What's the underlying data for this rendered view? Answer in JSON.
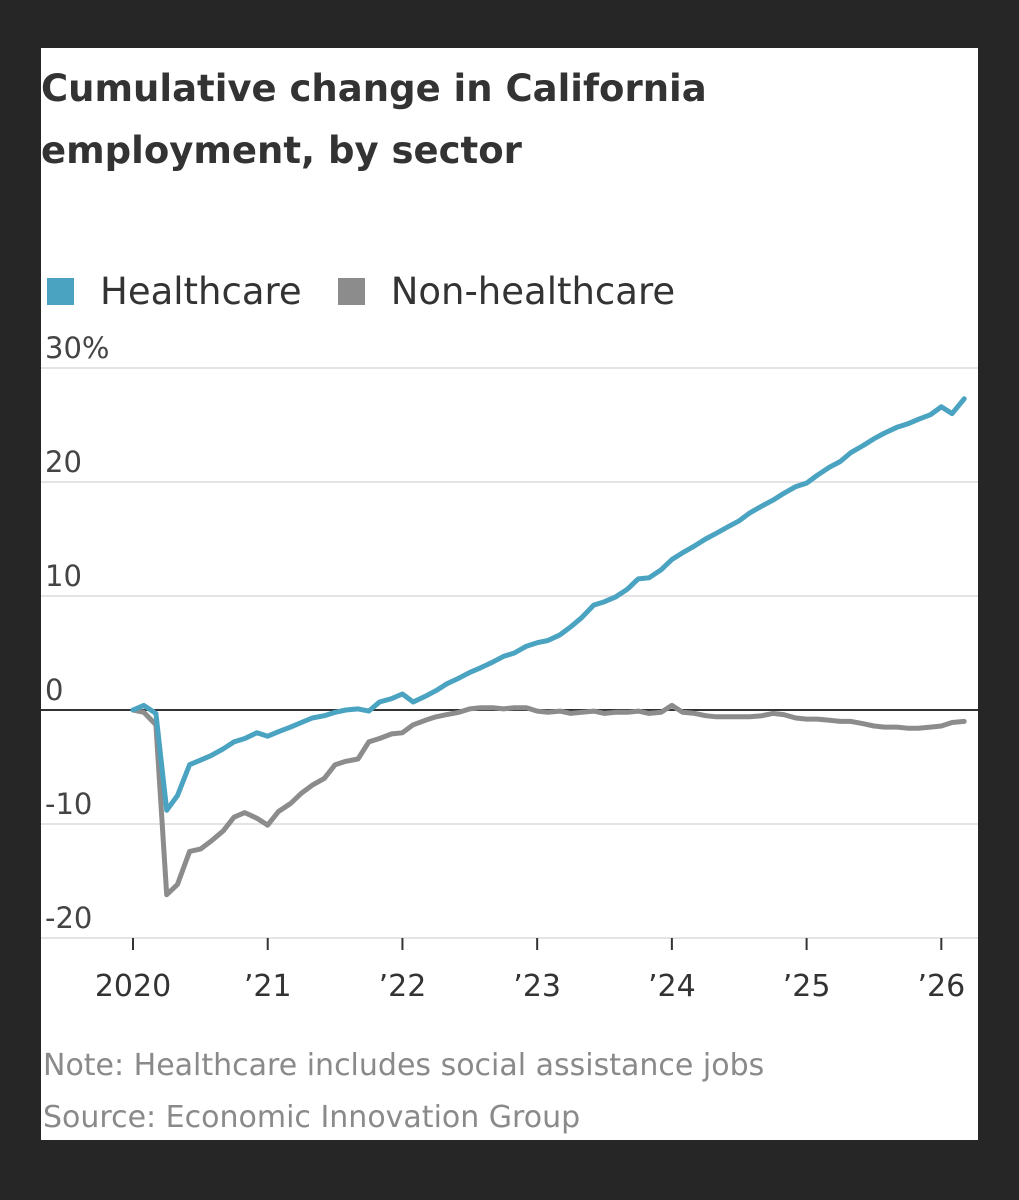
{
  "chart_data": {
    "type": "line",
    "title": "Cumulative change in California employment, by sector",
    "legend_position": "top-left",
    "y_ticks": [
      "30%",
      "20",
      "10",
      "0",
      "-10",
      "-20"
    ],
    "y_tick_values": [
      30,
      20,
      10,
      0,
      -10,
      -20
    ],
    "ylim": [
      -20,
      30
    ],
    "x_ticks": [
      "2020",
      "’21",
      "’22",
      "’23",
      "’24",
      "’25",
      "’26"
    ],
    "x_tick_values": [
      2020,
      2021,
      2022,
      2023,
      2024,
      2025,
      2026
    ],
    "xlim": [
      2020,
      2026.25
    ],
    "grid": true,
    "series": [
      {
        "name": "Healthcare",
        "color": "#4aa3c1",
        "points": [
          [
            2020.0,
            0
          ],
          [
            2020.08,
            0.4
          ],
          [
            2020.17,
            -0.3
          ],
          [
            2020.25,
            -8.8
          ],
          [
            2020.33,
            -7.5
          ],
          [
            2020.42,
            -4.8
          ],
          [
            2020.5,
            -4.4
          ],
          [
            2020.58,
            -4.0
          ],
          [
            2020.67,
            -3.4
          ],
          [
            2020.75,
            -2.8
          ],
          [
            2020.83,
            -2.5
          ],
          [
            2020.92,
            -2.0
          ],
          [
            2021.0,
            -2.3
          ],
          [
            2021.08,
            -1.9
          ],
          [
            2021.17,
            -1.5
          ],
          [
            2021.25,
            -1.1
          ],
          [
            2021.33,
            -0.7
          ],
          [
            2021.42,
            -0.5
          ],
          [
            2021.5,
            -0.2
          ],
          [
            2021.58,
            0.0
          ],
          [
            2021.67,
            0.1
          ],
          [
            2021.75,
            -0.1
          ],
          [
            2021.83,
            0.7
          ],
          [
            2021.92,
            1.0
          ],
          [
            2022.0,
            1.4
          ],
          [
            2022.08,
            0.7
          ],
          [
            2022.17,
            1.2
          ],
          [
            2022.25,
            1.7
          ],
          [
            2022.33,
            2.3
          ],
          [
            2022.42,
            2.8
          ],
          [
            2022.5,
            3.3
          ],
          [
            2022.58,
            3.7
          ],
          [
            2022.67,
            4.2
          ],
          [
            2022.75,
            4.7
          ],
          [
            2022.83,
            5.0
          ],
          [
            2022.92,
            5.6
          ],
          [
            2023.0,
            5.9
          ],
          [
            2023.08,
            6.1
          ],
          [
            2023.17,
            6.6
          ],
          [
            2023.25,
            7.3
          ],
          [
            2023.33,
            8.1
          ],
          [
            2023.42,
            9.2
          ],
          [
            2023.5,
            9.5
          ],
          [
            2023.58,
            9.9
          ],
          [
            2023.67,
            10.6
          ],
          [
            2023.75,
            11.5
          ],
          [
            2023.83,
            11.6
          ],
          [
            2023.92,
            12.3
          ],
          [
            2024.0,
            13.2
          ],
          [
            2024.08,
            13.8
          ],
          [
            2024.17,
            14.4
          ],
          [
            2024.25,
            15.0
          ],
          [
            2024.33,
            15.5
          ],
          [
            2024.42,
            16.1
          ],
          [
            2024.5,
            16.6
          ],
          [
            2024.58,
            17.3
          ],
          [
            2024.67,
            17.9
          ],
          [
            2024.75,
            18.4
          ],
          [
            2024.83,
            19.0
          ],
          [
            2024.92,
            19.6
          ],
          [
            2025.0,
            19.9
          ],
          [
            2025.08,
            20.6
          ],
          [
            2025.17,
            21.3
          ],
          [
            2025.25,
            21.8
          ],
          [
            2025.33,
            22.6
          ],
          [
            2025.42,
            23.2
          ],
          [
            2025.5,
            23.8
          ],
          [
            2025.58,
            24.3
          ],
          [
            2025.67,
            24.8
          ],
          [
            2025.75,
            25.1
          ],
          [
            2025.83,
            25.5
          ],
          [
            2025.92,
            25.9
          ],
          [
            2026.0,
            26.6
          ],
          [
            2026.08,
            26.0
          ],
          [
            2026.17,
            27.3
          ]
        ]
      },
      {
        "name": "Non-healthcare",
        "color": "#8c8c8c",
        "points": [
          [
            2020.0,
            0
          ],
          [
            2020.08,
            -0.2
          ],
          [
            2020.17,
            -1.3
          ],
          [
            2020.25,
            -16.2
          ],
          [
            2020.33,
            -15.3
          ],
          [
            2020.42,
            -12.4
          ],
          [
            2020.5,
            -12.2
          ],
          [
            2020.58,
            -11.5
          ],
          [
            2020.67,
            -10.6
          ],
          [
            2020.75,
            -9.4
          ],
          [
            2020.83,
            -9.0
          ],
          [
            2020.92,
            -9.5
          ],
          [
            2021.0,
            -10.1
          ],
          [
            2021.08,
            -8.9
          ],
          [
            2021.17,
            -8.2
          ],
          [
            2021.25,
            -7.3
          ],
          [
            2021.33,
            -6.6
          ],
          [
            2021.42,
            -6.0
          ],
          [
            2021.5,
            -4.8
          ],
          [
            2021.58,
            -4.5
          ],
          [
            2021.67,
            -4.3
          ],
          [
            2021.75,
            -2.8
          ],
          [
            2021.83,
            -2.5
          ],
          [
            2021.92,
            -2.1
          ],
          [
            2022.0,
            -2.0
          ],
          [
            2022.08,
            -1.3
          ],
          [
            2022.17,
            -0.9
          ],
          [
            2022.25,
            -0.6
          ],
          [
            2022.33,
            -0.4
          ],
          [
            2022.42,
            -0.2
          ],
          [
            2022.5,
            0.1
          ],
          [
            2022.58,
            0.2
          ],
          [
            2022.67,
            0.2
          ],
          [
            2022.75,
            0.1
          ],
          [
            2022.83,
            0.2
          ],
          [
            2022.92,
            0.2
          ],
          [
            2023.0,
            -0.1
          ],
          [
            2023.08,
            -0.2
          ],
          [
            2023.17,
            -0.1
          ],
          [
            2023.25,
            -0.3
          ],
          [
            2023.33,
            -0.2
          ],
          [
            2023.42,
            -0.1
          ],
          [
            2023.5,
            -0.3
          ],
          [
            2023.58,
            -0.2
          ],
          [
            2023.67,
            -0.2
          ],
          [
            2023.75,
            -0.1
          ],
          [
            2023.83,
            -0.3
          ],
          [
            2023.92,
            -0.2
          ],
          [
            2024.0,
            0.4
          ],
          [
            2024.08,
            -0.2
          ],
          [
            2024.17,
            -0.3
          ],
          [
            2024.25,
            -0.5
          ],
          [
            2024.33,
            -0.6
          ],
          [
            2024.42,
            -0.6
          ],
          [
            2024.5,
            -0.6
          ],
          [
            2024.58,
            -0.6
          ],
          [
            2024.67,
            -0.5
          ],
          [
            2024.75,
            -0.3
          ],
          [
            2024.83,
            -0.4
          ],
          [
            2024.92,
            -0.7
          ],
          [
            2025.0,
            -0.8
          ],
          [
            2025.08,
            -0.8
          ],
          [
            2025.17,
            -0.9
          ],
          [
            2025.25,
            -1.0
          ],
          [
            2025.33,
            -1.0
          ],
          [
            2025.42,
            -1.2
          ],
          [
            2025.5,
            -1.4
          ],
          [
            2025.58,
            -1.5
          ],
          [
            2025.67,
            -1.5
          ],
          [
            2025.75,
            -1.6
          ],
          [
            2025.83,
            -1.6
          ],
          [
            2025.92,
            -1.5
          ],
          [
            2026.0,
            -1.4
          ],
          [
            2026.08,
            -1.1
          ],
          [
            2026.17,
            -1.0
          ]
        ]
      }
    ],
    "note": "Note: Healthcare includes social assistance jobs",
    "source": "Source: Economic Innovation Group"
  }
}
